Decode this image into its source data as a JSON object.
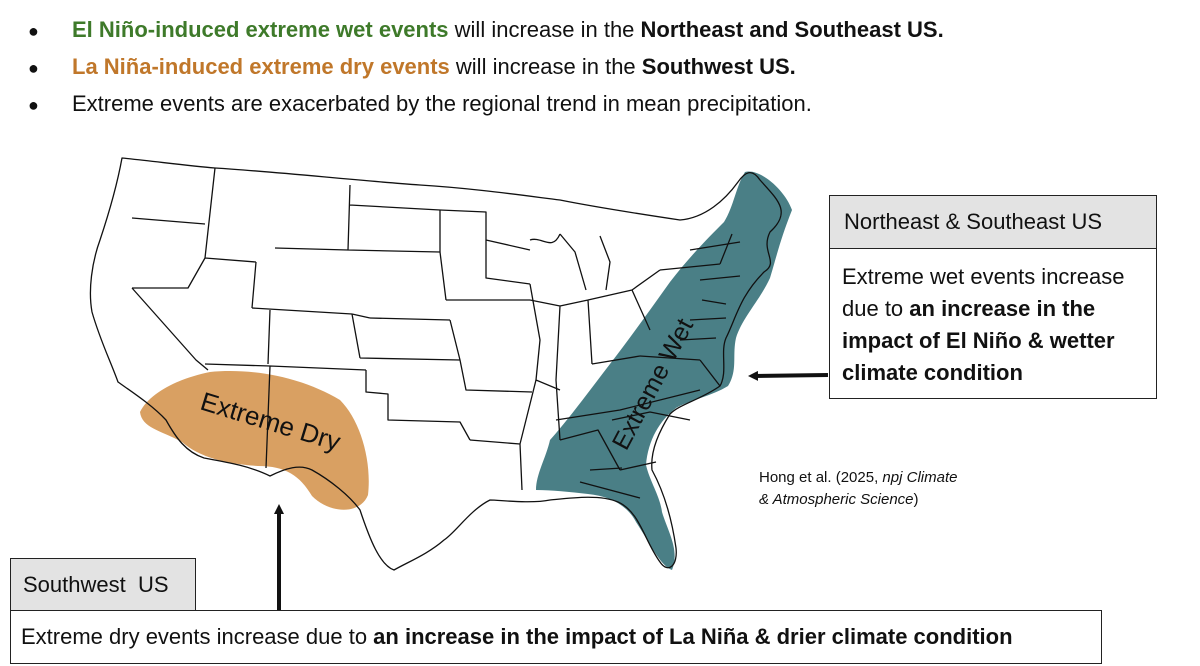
{
  "bullets": {
    "b1": {
      "highlight": "El Niño-induced extreme wet events",
      "middle": " will increase in the ",
      "region": "Northeast and Southeast US."
    },
    "b2": {
      "highlight": "La Niña-induced extreme dry events",
      "middle": " will increase in the ",
      "region": "Southwest US."
    },
    "b3": {
      "text": "Extreme events are exacerbated by the regional trend in mean precipitation."
    }
  },
  "map": {
    "wet_label": "Extreme Wet",
    "dry_label": "Extreme Dry",
    "wet_color": "#4a7f86",
    "dry_color": "#d9a062"
  },
  "northeast_box": {
    "title": "Northeast & Southeast US",
    "text_plain": "Extreme wet events increase due to ",
    "text_bold": "an increase in the impact of El Niño & wetter climate condition"
  },
  "southwest_box": {
    "title": "Southwest  US",
    "text_plain": "Extreme dry events increase due to ",
    "text_bold": "an increase in the impact of La Niña & drier climate condition"
  },
  "citation": {
    "line1_plain": "Hong et al. (2025, ",
    "line1_italic": "npj Climate",
    "line2_italic": "& Atmospheric Science",
    "line2_plain": ")"
  }
}
